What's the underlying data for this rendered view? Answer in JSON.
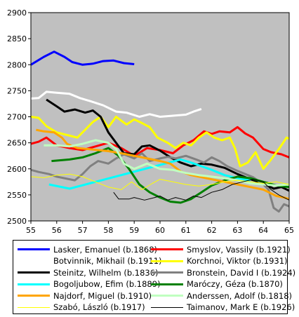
{
  "chart_data": {
    "type": "line",
    "title": "",
    "xlabel": "",
    "ylabel": "",
    "xlim": [
      55,
      65
    ],
    "ylim": [
      2500,
      2900
    ],
    "xticks": [
      "55",
      "56",
      "57",
      "58",
      "59",
      "60",
      "61",
      "62",
      "63",
      "64",
      "65"
    ],
    "yticks": [
      "2500",
      "2550",
      "2600",
      "2650",
      "2700",
      "2750",
      "2800",
      "2850",
      "2900"
    ],
    "grid": false,
    "plot_background": "#c0c0c0",
    "legend_position": "bottom",
    "series": [
      {
        "name": "Lasker, Emanuel (b.1868)",
        "color": "#0000ff",
        "width": 3,
        "points": [
          [
            55,
            2800
          ],
          [
            55.5,
            2815
          ],
          [
            55.9,
            2825
          ],
          [
            56.3,
            2815
          ],
          [
            56.6,
            2805
          ],
          [
            57,
            2800
          ],
          [
            57.4,
            2802
          ],
          [
            57.8,
            2807
          ],
          [
            58.2,
            2808
          ],
          [
            58.6,
            2803
          ],
          [
            59,
            2801
          ]
        ]
      },
      {
        "name": "Smyslov, Vassily (b.1921)",
        "color": "#ff0000",
        "width": 3,
        "points": [
          [
            55,
            2648
          ],
          [
            55.3,
            2652
          ],
          [
            55.6,
            2660
          ],
          [
            56,
            2645
          ],
          [
            56.5,
            2640
          ],
          [
            57,
            2636
          ],
          [
            57.5,
            2643
          ],
          [
            58,
            2650
          ],
          [
            58.5,
            2640
          ],
          [
            59,
            2625
          ],
          [
            59.5,
            2640
          ],
          [
            60,
            2636
          ],
          [
            60.5,
            2630
          ],
          [
            60.9,
            2645
          ],
          [
            61.3,
            2655
          ],
          [
            61.7,
            2672
          ],
          [
            62,
            2667
          ],
          [
            62.3,
            2672
          ],
          [
            62.7,
            2670
          ],
          [
            63,
            2680
          ],
          [
            63.3,
            2668
          ],
          [
            63.6,
            2660
          ],
          [
            64,
            2638
          ],
          [
            64.3,
            2632
          ],
          [
            64.7,
            2628
          ],
          [
            65,
            2622
          ]
        ]
      },
      {
        "name": "Botvinnik, Mikhail (b.1911)",
        "color": "#ffffff",
        "width": 3,
        "points": [
          [
            55,
            2735
          ],
          [
            55.3,
            2736
          ],
          [
            55.6,
            2748
          ],
          [
            56,
            2746
          ],
          [
            56.5,
            2744
          ],
          [
            56.9,
            2736
          ],
          [
            57.3,
            2730
          ],
          [
            57.8,
            2722
          ],
          [
            58.3,
            2710
          ],
          [
            58.7,
            2708
          ],
          [
            59.2,
            2700
          ],
          [
            59.6,
            2705
          ],
          [
            60,
            2700
          ],
          [
            60.5,
            2702
          ],
          [
            61,
            2704
          ],
          [
            61.3,
            2710
          ],
          [
            61.6,
            2715
          ]
        ]
      },
      {
        "name": "Korchnoi, Viktor (b.1931)",
        "color": "#ffff00",
        "width": 3,
        "points": [
          [
            55,
            2700
          ],
          [
            55.3,
            2698
          ],
          [
            55.6,
            2682
          ],
          [
            56,
            2670
          ],
          [
            56.4,
            2665
          ],
          [
            56.8,
            2660
          ],
          [
            57.1,
            2675
          ],
          [
            57.4,
            2690
          ],
          [
            57.7,
            2700
          ],
          [
            58,
            2680
          ],
          [
            58.3,
            2700
          ],
          [
            58.7,
            2685
          ],
          [
            59,
            2695
          ],
          [
            59.3,
            2688
          ],
          [
            59.6,
            2680
          ],
          [
            59.9,
            2660
          ],
          [
            60.3,
            2650
          ],
          [
            60.6,
            2640
          ],
          [
            60.9,
            2650
          ],
          [
            61.2,
            2645
          ],
          [
            61.5,
            2660
          ],
          [
            61.8,
            2670
          ],
          [
            62.1,
            2660
          ],
          [
            62.4,
            2655
          ],
          [
            62.7,
            2660
          ],
          [
            62.9,
            2640
          ],
          [
            63.1,
            2605
          ],
          [
            63.4,
            2612
          ],
          [
            63.7,
            2632
          ],
          [
            64,
            2600
          ],
          [
            64.3,
            2618
          ],
          [
            64.6,
            2638
          ],
          [
            64.9,
            2660
          ],
          [
            65,
            2658
          ]
        ]
      },
      {
        "name": "Steinitz, Wilhelm (b.1836)",
        "color": "#000000",
        "width": 3,
        "points": [
          [
            55.6,
            2733
          ],
          [
            56,
            2720
          ],
          [
            56.3,
            2710
          ],
          [
            56.7,
            2714
          ],
          [
            57.1,
            2708
          ],
          [
            57.4,
            2712
          ],
          [
            57.7,
            2700
          ],
          [
            58,
            2670
          ],
          [
            58.3,
            2650
          ],
          [
            58.6,
            2630
          ],
          [
            59,
            2628
          ],
          [
            59.3,
            2643
          ],
          [
            59.6,
            2645
          ],
          [
            60,
            2635
          ],
          [
            60.4,
            2622
          ],
          [
            60.8,
            2612
          ],
          [
            61.2,
            2605
          ],
          [
            61.6,
            2610
          ],
          [
            62,
            2608
          ],
          [
            62.5,
            2602
          ],
          [
            63,
            2590
          ],
          [
            63.5,
            2580
          ],
          [
            64,
            2572
          ],
          [
            64.4,
            2562
          ],
          [
            64.7,
            2565
          ],
          [
            65,
            2558
          ]
        ]
      },
      {
        "name": "Bronstein, David I (b.1924)",
        "color": "#808080",
        "width": 3,
        "points": [
          [
            55,
            2598
          ],
          [
            55.3,
            2594
          ],
          [
            55.7,
            2590
          ],
          [
            56,
            2585
          ],
          [
            56.3,
            2582
          ],
          [
            56.7,
            2578
          ],
          [
            57,
            2590
          ],
          [
            57.3,
            2605
          ],
          [
            57.6,
            2615
          ],
          [
            58,
            2610
          ],
          [
            58.3,
            2620
          ],
          [
            58.6,
            2628
          ],
          [
            59,
            2620
          ],
          [
            59.3,
            2630
          ],
          [
            59.6,
            2615
          ],
          [
            60,
            2620
          ],
          [
            60.3,
            2623
          ],
          [
            60.6,
            2620
          ],
          [
            61,
            2625
          ],
          [
            61.4,
            2618
          ],
          [
            61.7,
            2612
          ],
          [
            62,
            2622
          ],
          [
            62.3,
            2615
          ],
          [
            62.6,
            2605
          ],
          [
            63,
            2596
          ],
          [
            63.3,
            2590
          ],
          [
            63.6,
            2584
          ],
          [
            64,
            2570
          ],
          [
            64.2,
            2560
          ],
          [
            64.4,
            2525
          ],
          [
            64.6,
            2518
          ],
          [
            64.8,
            2532
          ],
          [
            65,
            2528
          ]
        ]
      },
      {
        "name": "Bogoljubow, Efim (b.1889)",
        "color": "#00ffff",
        "width": 3,
        "points": [
          [
            55.7,
            2570
          ],
          [
            56.1,
            2566
          ],
          [
            56.5,
            2562
          ],
          [
            60.8,
            2618
          ],
          [
            61.2,
            2612
          ],
          [
            61.6,
            2605
          ],
          [
            62,
            2598
          ],
          [
            62.5,
            2588
          ],
          [
            63,
            2582
          ],
          [
            63.5,
            2578
          ]
        ]
      },
      {
        "name": "Maróczy, Géza (b.1870)",
        "color": "#008000",
        "width": 3,
        "points": [
          [
            55.8,
            2615
          ],
          [
            56.5,
            2618
          ],
          [
            57,
            2622
          ],
          [
            57.5,
            2630
          ],
          [
            58,
            2640
          ],
          [
            58.4,
            2625
          ],
          [
            58.8,
            2600
          ],
          [
            59.2,
            2570
          ],
          [
            59.6,
            2555
          ],
          [
            60,
            2545
          ],
          [
            60.4,
            2537
          ],
          [
            60.8,
            2535
          ],
          [
            61.2,
            2542
          ],
          [
            61.6,
            2555
          ],
          [
            62,
            2568
          ],
          [
            62.5,
            2578
          ],
          [
            63,
            2585
          ],
          [
            63.5,
            2582
          ],
          [
            64,
            2575
          ],
          [
            64.5,
            2568
          ],
          [
            65,
            2565
          ]
        ]
      },
      {
        "name": "Najdorf, Miguel (b.1910)",
        "color": "#ffa500",
        "width": 3,
        "points": [
          [
            55.2,
            2675
          ],
          [
            55.5,
            2672
          ],
          [
            55.9,
            2670
          ],
          [
            56.2,
            2660
          ],
          [
            56.4,
            2648
          ],
          [
            56.8,
            2640
          ],
          [
            57.2,
            2638
          ],
          [
            57.6,
            2636
          ],
          [
            58,
            2634
          ],
          [
            58.5,
            2630
          ],
          [
            59,
            2625
          ],
          [
            59.5,
            2620
          ],
          [
            60,
            2615
          ],
          [
            60.4,
            2610
          ],
          [
            60.8,
            2595
          ],
          [
            61.2,
            2588
          ],
          [
            61.6,
            2584
          ],
          [
            62,
            2580
          ],
          [
            62.5,
            2575
          ],
          [
            63,
            2570
          ],
          [
            63.5,
            2565
          ],
          [
            64,
            2560
          ],
          [
            64.5,
            2548
          ],
          [
            64.8,
            2545
          ],
          [
            65,
            2542
          ]
        ]
      },
      {
        "name": "Anderssen, Adolf (b.1818)",
        "color": "#c0ffc0",
        "width": 3,
        "points": [
          [
            55.5,
            2645
          ],
          [
            56,
            2645
          ],
          [
            56.5,
            2643
          ],
          [
            57,
            2648
          ],
          [
            57.5,
            2655
          ],
          [
            58,
            2650
          ],
          [
            58.3,
            2638
          ],
          [
            58.6,
            2610
          ],
          [
            59,
            2600
          ],
          [
            59.5,
            2610
          ],
          [
            60,
            2600
          ],
          [
            60.5,
            2598
          ],
          [
            61,
            2592
          ],
          [
            61.5,
            2588
          ],
          [
            62,
            2585
          ],
          [
            62.5,
            2582
          ],
          [
            63,
            2578
          ],
          [
            63.5,
            2572
          ],
          [
            64,
            2570
          ],
          [
            64.5,
            2568
          ],
          [
            65,
            2570
          ]
        ]
      },
      {
        "name": "Szabó, László (b.1917)",
        "color": "#ffff00",
        "width": 1,
        "points": [
          [
            55,
            2585
          ],
          [
            55.5,
            2583
          ],
          [
            56,
            2588
          ],
          [
            56.5,
            2590
          ],
          [
            57,
            2585
          ],
          [
            57.5,
            2575
          ],
          [
            58,
            2565
          ],
          [
            58.5,
            2560
          ],
          [
            58.9,
            2575
          ],
          [
            59.3,
            2560
          ],
          [
            59.7,
            2572
          ],
          [
            60,
            2580
          ],
          [
            60.5,
            2575
          ],
          [
            61,
            2570
          ],
          [
            61.5,
            2567
          ],
          [
            62,
            2570
          ],
          [
            62.5,
            2575
          ],
          [
            63,
            2578
          ],
          [
            63.5,
            2575
          ],
          [
            64,
            2572
          ],
          [
            64.5,
            2575
          ],
          [
            65,
            2570
          ]
        ]
      },
      {
        "name": "Taimanov, Mark E (b.1926)",
        "color": "#000000",
        "width": 1,
        "points": [
          [
            58.2,
            2555
          ],
          [
            58.4,
            2542
          ],
          [
            58.8,
            2542
          ],
          [
            59,
            2545
          ],
          [
            59.4,
            2540
          ],
          [
            59.8,
            2545
          ],
          [
            60,
            2548
          ],
          [
            60.3,
            2540
          ],
          [
            60.6,
            2545
          ],
          [
            61,
            2540
          ],
          [
            61.3,
            2548
          ],
          [
            61.6,
            2545
          ],
          [
            62,
            2555
          ],
          [
            62.4,
            2560
          ],
          [
            62.8,
            2570
          ],
          [
            63.2,
            2575
          ],
          [
            63.6,
            2580
          ],
          [
            64,
            2575
          ],
          [
            64.3,
            2560
          ],
          [
            64.6,
            2550
          ],
          [
            65,
            2540
          ]
        ]
      }
    ]
  }
}
